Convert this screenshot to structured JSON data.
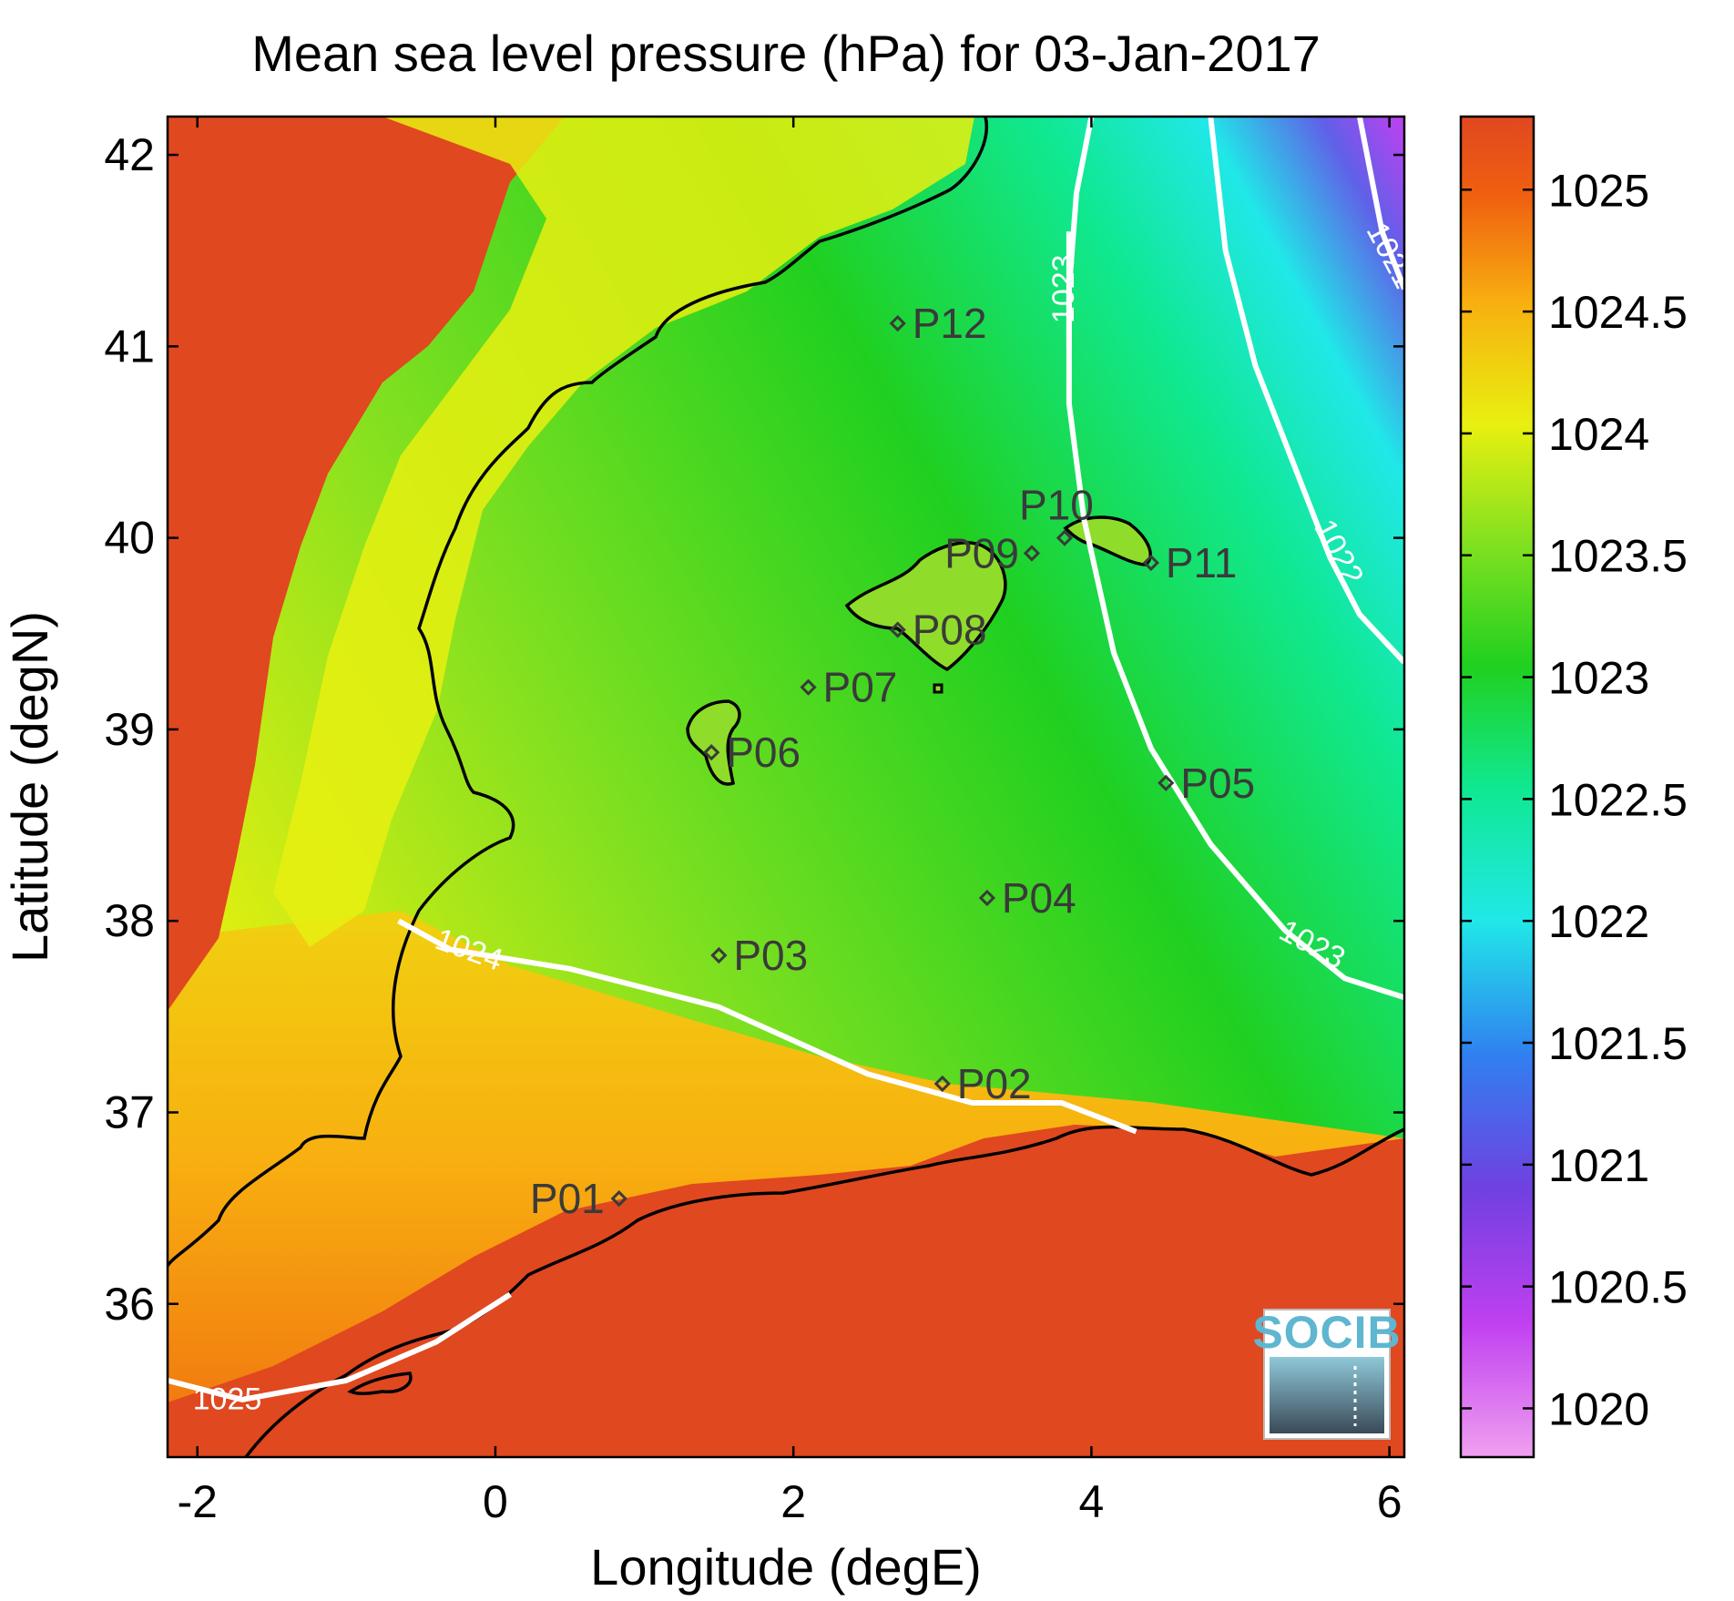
{
  "chart_data": {
    "type": "heatmap",
    "title": "Mean sea level pressure (hPa) for 03-Jan-2017",
    "xlabel": "Longitude (degE)",
    "ylabel": "Latitude (degN)",
    "xlim": [
      -2.2,
      6.1
    ],
    "ylim": [
      35.2,
      42.2
    ],
    "xticks": [
      -2,
      0,
      2,
      4,
      6
    ],
    "yticks": [
      36,
      37,
      38,
      39,
      40,
      41,
      42
    ],
    "colorbar": {
      "range": [
        1019.8,
        1025.3
      ],
      "ticks": [
        1020,
        1020.5,
        1021,
        1021.5,
        1022,
        1022.5,
        1023,
        1023.5,
        1024,
        1024.5,
        1025
      ],
      "colormap": [
        "#f0a0f0",
        "#c040f0",
        "#7040e0",
        "#3080f0",
        "#20e8e8",
        "#10e890",
        "#20d020",
        "#80e020",
        "#e8f010",
        "#f8b010",
        "#f06010",
        "#e04820"
      ]
    },
    "contours": [
      {
        "label": "1021",
        "level": 1021
      },
      {
        "label": "1022",
        "level": 1022
      },
      {
        "label": "1023",
        "level": 1023
      },
      {
        "label": "1023",
        "level": 1023
      },
      {
        "label": "1024",
        "level": 1024
      },
      {
        "label": "1025",
        "level": 1025
      }
    ],
    "points": [
      {
        "name": "P01",
        "lon": 0.83,
        "lat": 36.55
      },
      {
        "name": "P02",
        "lon": 3.0,
        "lat": 37.15
      },
      {
        "name": "P03",
        "lon": 1.5,
        "lat": 37.82
      },
      {
        "name": "P04",
        "lon": 3.3,
        "lat": 38.12
      },
      {
        "name": "P05",
        "lon": 4.5,
        "lat": 38.72
      },
      {
        "name": "P06",
        "lon": 1.45,
        "lat": 38.88
      },
      {
        "name": "P07",
        "lon": 2.1,
        "lat": 39.22
      },
      {
        "name": "P08",
        "lon": 2.7,
        "lat": 39.52
      },
      {
        "name": "P09",
        "lon": 3.6,
        "lat": 39.92
      },
      {
        "name": "P10",
        "lon": 3.82,
        "lat": 40.0
      },
      {
        "name": "P11",
        "lon": 4.4,
        "lat": 39.87
      },
      {
        "name": "P12",
        "lon": 2.7,
        "lat": 41.12
      }
    ]
  },
  "logo": {
    "text": "SOCIB"
  }
}
